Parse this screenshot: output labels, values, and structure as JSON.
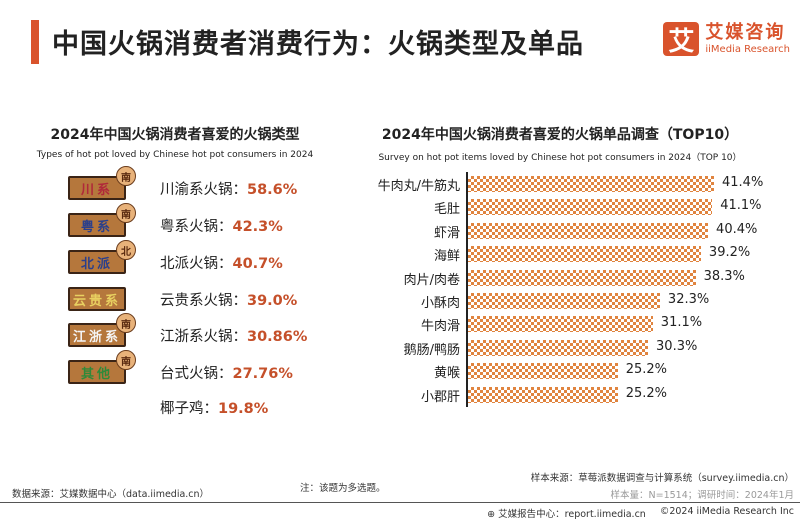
{
  "header": {
    "title": "中国火锅消费者消费行为：火锅类型及单品",
    "logo_mark": "艾",
    "logo_cn": "艾媒咨询",
    "logo_en": "iiMedia Research",
    "accent": "#d9532c"
  },
  "left": {
    "title": "2024年中国火锅消费者喜爱的火锅类型",
    "subtitle": "Types of hot pot loved by Chinese hot pot consumers in 2024",
    "items": [
      {
        "sign": "川系",
        "badge": "南",
        "sign_color": "#b0283a",
        "label": "川渝系火锅：",
        "value": "58.6%"
      },
      {
        "sign": "粤系",
        "badge": "南",
        "sign_color": "#2a3f8c",
        "label": "粤系火锅：",
        "value": "42.3%"
      },
      {
        "sign": "北派",
        "badge": "北",
        "sign_color": "#2a3f8c",
        "label": "北派火锅：",
        "value": "40.7%"
      },
      {
        "sign": "云贵系",
        "badge": "",
        "sign_color": "#e8d060",
        "label": "云贵系火锅：",
        "value": "39.0%"
      },
      {
        "sign": "江浙系",
        "badge": "南",
        "sign_color": "#f4f4f4",
        "label": "江浙系火锅：",
        "value": "30.86%"
      },
      {
        "sign": "其他",
        "badge": "南",
        "sign_color": "#2f8a3a",
        "label": "台式火锅：",
        "value": "27.76%"
      },
      {
        "sign": "",
        "badge": "",
        "sign_color": "",
        "label": "椰子鸡：",
        "value": "19.8%"
      }
    ]
  },
  "chart_data": {
    "type": "bar",
    "orientation": "horizontal",
    "title": "2024年中国火锅消费者喜爱的火锅单品调查（TOP10）",
    "subtitle": "Survey on hot pot items loved by Chinese hot pot consumers in 2024（TOP 10）",
    "categories": [
      "牛肉丸/牛筋丸",
      "毛肚",
      "虾滑",
      "海鲜",
      "肉片/肉卷",
      "小酥肉",
      "牛肉滑",
      "鹅肠/鸭肠",
      "黄喉",
      "小郡肝"
    ],
    "values": [
      41.4,
      41.1,
      40.4,
      39.2,
      38.3,
      32.3,
      31.1,
      30.3,
      25.2,
      25.2
    ],
    "labels": [
      "41.4%",
      "41.1%",
      "40.4%",
      "39.2%",
      "38.3%",
      "32.3%",
      "31.1%",
      "30.3%",
      "25.2%",
      "25.2%"
    ],
    "unit": "%",
    "bar_color": "#e0843f"
  },
  "footer": {
    "source": "数据来源：艾媒数据中心（data.iimedia.cn）",
    "note": "注：该题为多选题。",
    "sample_source": "样本来源：草莓派数据调查与计算系统（survey.iimedia.cn）",
    "sample_info": "样本量：N=1514；调研时间：2024年1月",
    "report": "艾媒报告中心：report.iimedia.cn",
    "copyright": "©2024  iiMedia Research  Inc"
  }
}
